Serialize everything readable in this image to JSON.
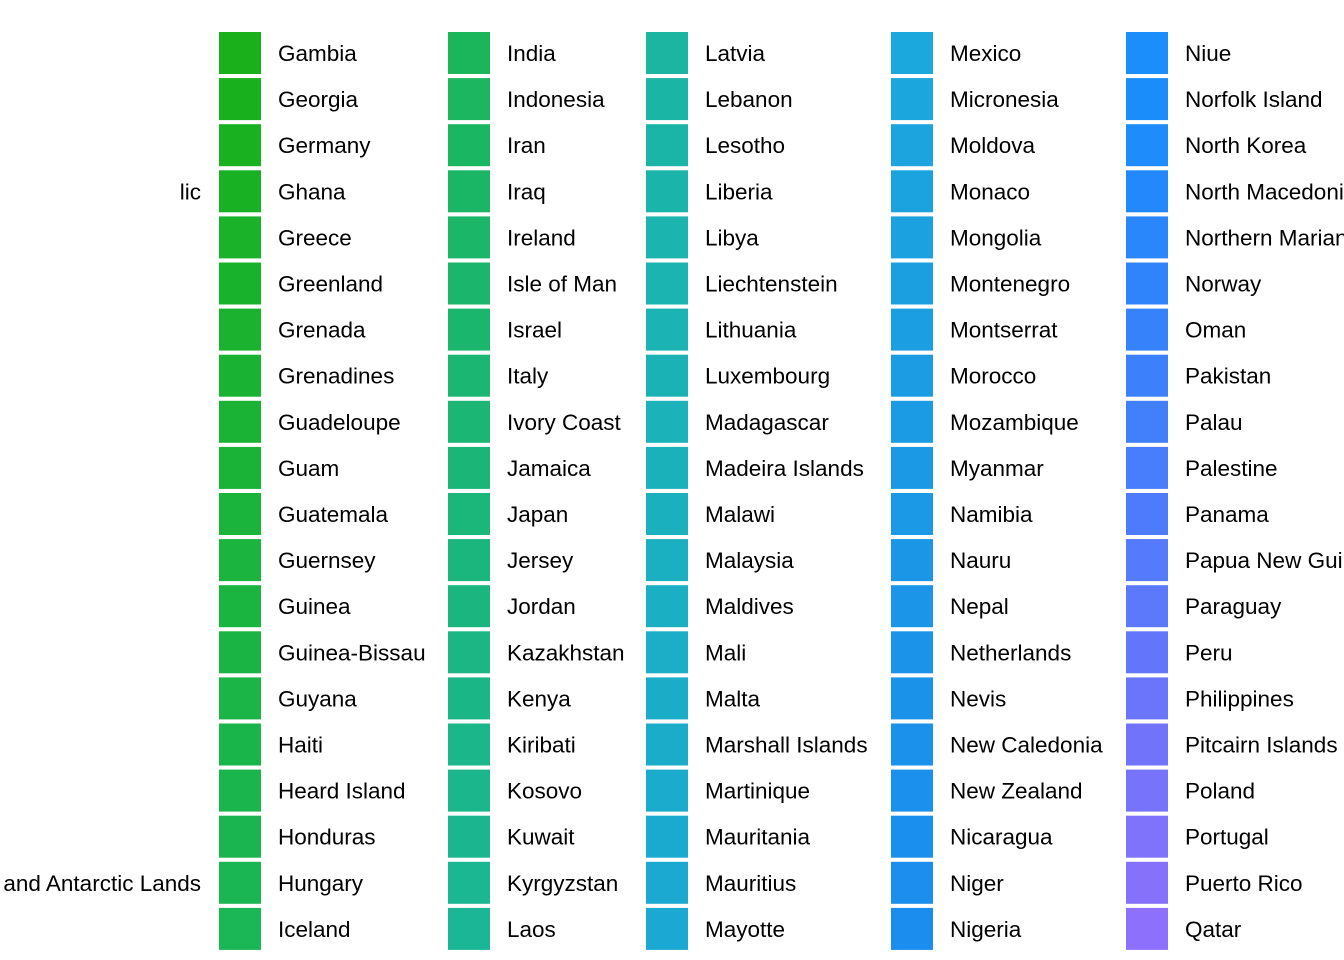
{
  "chart_data": {
    "type": "legend",
    "title": "",
    "partial_column": [
      {
        "label": "lic",
        "row": 3
      },
      {
        "label": "and Antarctic Lands",
        "row": 18
      }
    ],
    "columns": [
      {
        "labels": [
          "Gambia",
          "Georgia",
          "Germany",
          "Ghana",
          "Greece",
          "Greenland",
          "Grenada",
          "Grenadines",
          "Guadeloupe",
          "Guam",
          "Guatemala",
          "Guernsey",
          "Guinea",
          "Guinea-Bissau",
          "Guyana",
          "Haiti",
          "Heard Island",
          "Honduras",
          "Hungary",
          "Iceland"
        ],
        "colors": [
          "#19b01b",
          "#19b01e",
          "#19b120",
          "#19b124",
          "#19b228",
          "#19b22c",
          "#1ab22f",
          "#1ab232",
          "#1ab335",
          "#1ab338",
          "#1ab33b",
          "#1ab43e",
          "#1ab441",
          "#1ab444",
          "#1ab447",
          "#1ab54a",
          "#1ab54d",
          "#1ab550",
          "#1ab653",
          "#1bb656"
        ]
      },
      {
        "labels": [
          "India",
          "Indonesia",
          "Iran",
          "Iraq",
          "Ireland",
          "Isle of Man",
          "Israel",
          "Italy",
          "Ivory Coast",
          "Jamaica",
          "Japan",
          "Jersey",
          "Jordan",
          "Kazakhstan",
          "Kenya",
          "Kiribati",
          "Kosovo",
          "Kuwait",
          "Kyrgyzstan",
          "Laos"
        ],
        "colors": [
          "#1bb65c",
          "#1bb65f",
          "#1bb662",
          "#1bb665",
          "#1bb668",
          "#1bb66b",
          "#1bb66e",
          "#1bb671",
          "#1bb674",
          "#1bb677",
          "#1bb67a",
          "#1bb67d",
          "#1bb680",
          "#1bb683",
          "#1bb686",
          "#1bb689",
          "#1bb68c",
          "#1bb68f",
          "#1bb692",
          "#1bb695"
        ]
      },
      {
        "labels": [
          "Latvia",
          "Lebanon",
          "Lesotho",
          "Liberia",
          "Libya",
          "Liechtenstein",
          "Lithuania",
          "Luxembourg",
          "Madagascar",
          "Madeira Islands",
          "Malawi",
          "Malaysia",
          "Maldives",
          "Mali",
          "Malta",
          "Marshall Islands",
          "Martinique",
          "Mauritania",
          "Mauritius",
          "Mayotte"
        ],
        "colors": [
          "#1bb5a2",
          "#1bb5a5",
          "#1bb5a8",
          "#1bb4ab",
          "#1bb4ae",
          "#1bb4b1",
          "#1bb3b3",
          "#1bb2b6",
          "#1bb2b9",
          "#1bb1bb",
          "#1bb0be",
          "#1bb0c1",
          "#1bafc3",
          "#1baec6",
          "#1badc8",
          "#1bacca",
          "#1babcc",
          "#1baacf",
          "#1ba9d1",
          "#1ba8d3"
        ]
      },
      {
        "labels": [
          "Mexico",
          "Micronesia",
          "Moldova",
          "Monaco",
          "Mongolia",
          "Montenegro",
          "Montserrat",
          "Morocco",
          "Mozambique",
          "Myanmar",
          "Namibia",
          "Nauru",
          "Nepal",
          "Netherlands",
          "Nevis",
          "New Caledonia",
          "New Zealand",
          "Nicaragua",
          "Niger",
          "Nigeria"
        ],
        "colors": [
          "#1ba8dc",
          "#1ba6dd",
          "#1ba4de",
          "#1ba3df",
          "#1ba1e0",
          "#1b9fe1",
          "#1b9ee2",
          "#1b9ce3",
          "#1b9be4",
          "#1b99e5",
          "#1b98e6",
          "#1b96e7",
          "#1b95e8",
          "#1b93e9",
          "#1b92ea",
          "#1b91eb",
          "#1b90ec",
          "#1b8fed",
          "#1b8eee",
          "#1b8dee"
        ]
      },
      {
        "labels": [
          "Niue",
          "Norfolk Island",
          "North Korea",
          "North Macedonia",
          "Northern Mariana Islands",
          "Norway",
          "Oman",
          "Pakistan",
          "Palau",
          "Palestine",
          "Panama",
          "Papua New Guinea",
          "Paraguay",
          "Peru",
          "Philippines",
          "Pitcairn Islands",
          "Poland",
          "Portugal",
          "Puerto Rico",
          "Qatar"
        ],
        "colors": [
          "#1b8efb",
          "#1b8dfb",
          "#1e8cfb",
          "#2388fb",
          "#2a86fb",
          "#3084fb",
          "#3682fb",
          "#3c80fb",
          "#427ffb",
          "#487dfb",
          "#4e7bfb",
          "#557afb",
          "#5c78fb",
          "#6376fb",
          "#6a75fb",
          "#7174fb",
          "#7873fb",
          "#7f72fb",
          "#8671fb",
          "#8d70fb"
        ]
      }
    ]
  }
}
